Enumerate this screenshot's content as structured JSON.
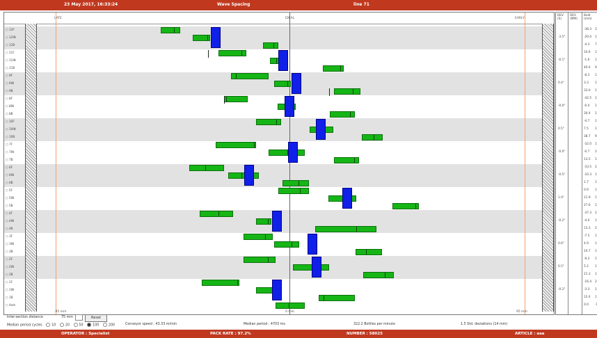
{
  "header": {
    "datetime": "23 May 2017, 16:33:24",
    "title": "Wave Spacing",
    "line": "line 71"
  },
  "axis": {
    "late_label": "LATE",
    "ideal_label": "IDEAL",
    "early_label": "EARLY",
    "left_tick": "-95 mm",
    "center_tick": "0 mm",
    "right_tick": "95 mm"
  },
  "stats_headers": {
    "col1": "DEV (S)",
    "col2": "DEV (MM)",
    "col3": "Bold (mm)"
  },
  "rows": [
    {
      "label": "12F",
      "dev": "-38.3",
      "bold": "3.5"
    },
    {
      "label": "12IN",
      "dev": "-20.0",
      "bold": "11.8"
    },
    {
      "label": "12B",
      "dev": "-4.3",
      "bold": "7.6"
    },
    {
      "label": "11F",
      "dev": "10.6",
      "bold": "10.8"
    },
    {
      "label": "11IN",
      "dev": "-1.6",
      "bold": "10.1"
    },
    {
      "label": "11B",
      "dev": "40.4",
      "bold": "9.5"
    },
    {
      "label": "9F",
      "dev": "-8.3",
      "bold": "17.6"
    },
    {
      "label": "9IN",
      "dev": "3.3",
      "bold": "15.1"
    },
    {
      "label": "9B",
      "dev": "33.0",
      "bold": "11.8"
    },
    {
      "label": "8F",
      "dev": "-42.5",
      "bold": "10.1"
    },
    {
      "label": "8IN",
      "dev": "-0.4",
      "bold": "10.5"
    },
    {
      "label": "8B",
      "dev": "30.4",
      "bold": "10.8"
    },
    {
      "label": "10F",
      "dev": "-4.7",
      "bold": "12.6"
    },
    {
      "label": "10IN",
      "dev": "7.5",
      "bold": "10.0"
    },
    {
      "label": "10B",
      "dev": "38.7",
      "bold": "9.1"
    },
    {
      "label": "7F",
      "dev": "-32.0",
      "bold": "17.5"
    },
    {
      "label": "7IN",
      "dev": "-0.7",
      "bold": "26.6"
    },
    {
      "label": "7B",
      "dev": "13.5",
      "bold": "13.5"
    },
    {
      "label": "6F",
      "dev": "-33.5",
      "bold": "20.3"
    },
    {
      "label": "6IN",
      "dev": "-10.3",
      "bold": "14.5"
    },
    {
      "label": "6B",
      "dev": "1.7",
      "bold": "12.7"
    },
    {
      "label": "5F",
      "dev": "0.9",
      "bold": "14.5"
    },
    {
      "label": "5IN",
      "dev": "11.9",
      "bold": "13.3"
    },
    {
      "label": "5B",
      "dev": "27.6",
      "bold": "12.4"
    },
    {
      "label": "4F",
      "dev": "-37.3",
      "bold": "20.5"
    },
    {
      "label": "4IN",
      "dev": "-4.0",
      "bold": "12.0"
    },
    {
      "label": "4B",
      "dev": "13.3",
      "bold": "20.1"
    },
    {
      "label": "3F",
      "dev": "-7.5",
      "bold": "15.5"
    },
    {
      "label": "3IN",
      "dev": "4.9",
      "bold": "10.2"
    },
    {
      "label": "3B",
      "dev": "10.7",
      "bold": "12.3"
    },
    {
      "label": "2F",
      "dev": "-9.2",
      "bold": "16.5"
    },
    {
      "label": "2IN",
      "dev": "5.2",
      "bold": "17.5"
    },
    {
      "label": "2B",
      "dev": "21.3",
      "bold": "16.2"
    },
    {
      "label": "1F",
      "dev": "-16.4",
      "bold": "27.3"
    },
    {
      "label": "1IN",
      "dev": "-3.3",
      "bold": "10.0"
    },
    {
      "label": "1B",
      "dev": "12.4",
      "bold": "17.3"
    },
    {
      "label": "Axle",
      "dev": "0.0",
      "bold": "-10.0"
    }
  ],
  "group_devs": [
    "-3.5°",
    "-0.1°",
    "0.4°",
    "-0.0°",
    "0.5°",
    "-0.0°",
    "-0.5°",
    "1.0°",
    "-0.2°",
    "0.6°",
    "0.5°",
    "-0.2°"
  ],
  "controls": {
    "distance_label": "Inter-section distance",
    "distance_value": "75 mm",
    "reset_label": "Reset",
    "median_label": "Median period cycles",
    "radio_options": [
      "10",
      "20",
      "50",
      "100",
      "200"
    ],
    "conveyor_speed": "Conveyor speed : 43.33 m/min",
    "median_period": "Median period : 4703 ms",
    "bottles": "322.2 Bottles per minute",
    "deviations": "1.5 Std. deviations (14 mm)"
  },
  "footer": {
    "operator": "OPERATOR : Specialist",
    "pack_rate": "PACK RATE : 97.2%",
    "number": "NUMBER : 58025",
    "article": "ARTICLE : aaa"
  }
}
